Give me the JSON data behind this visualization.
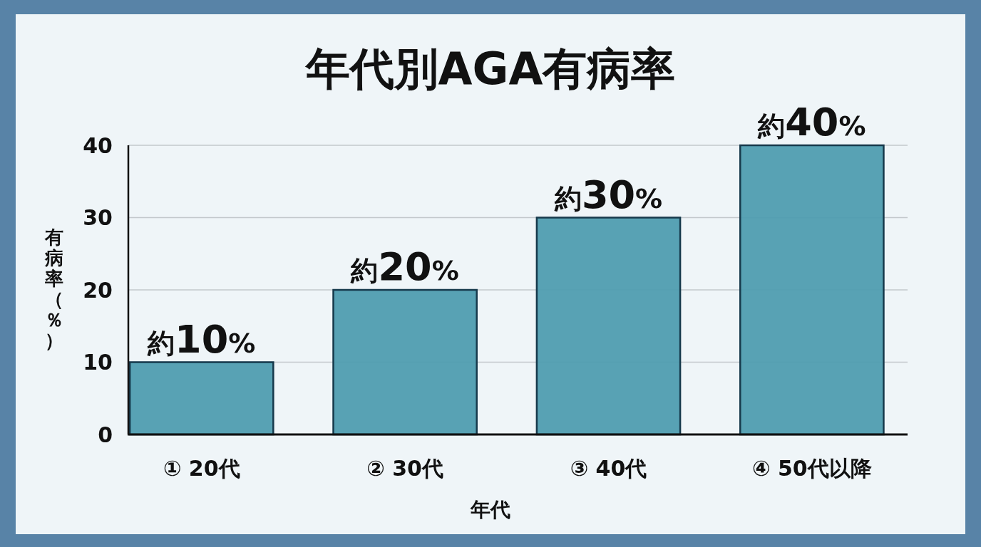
{
  "chart_data": {
    "type": "bar",
    "title": "年代別AGA有病率",
    "xlabel": "年代",
    "ylabel": "有病率（％）",
    "categories": [
      "① 20代",
      "② 30代",
      "③ 40代",
      "④ 50代以降"
    ],
    "values": [
      10,
      20,
      30,
      40
    ],
    "value_labels": [
      "約10%",
      "約20%",
      "約30%",
      "約40%"
    ],
    "color": "#4f9db0",
    "ylim": [
      0,
      40
    ],
    "yticks": [
      0,
      10,
      20,
      30,
      40
    ],
    "grid": "y"
  }
}
